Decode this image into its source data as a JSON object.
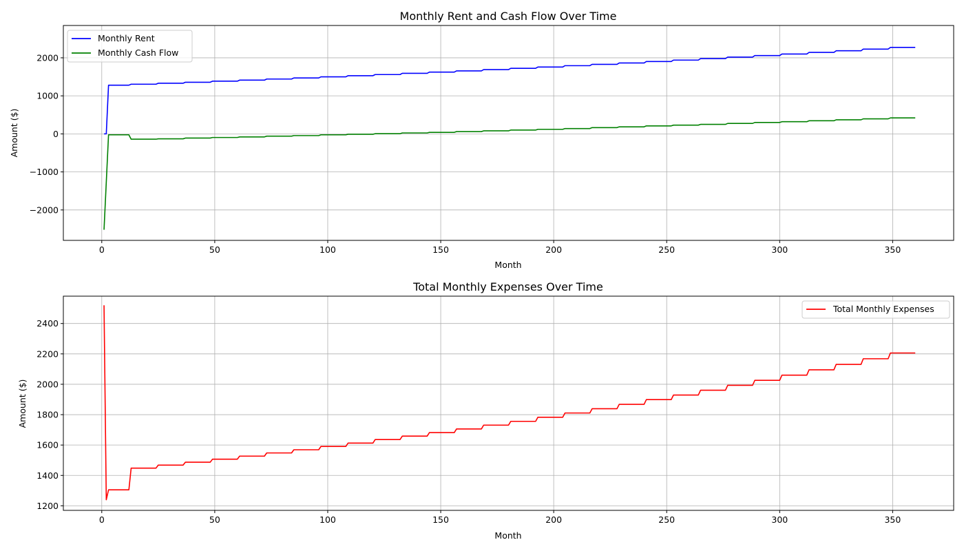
{
  "chart_data": [
    {
      "type": "line",
      "title": "Monthly Rent and Cash Flow Over Time",
      "xlabel": "Month",
      "ylabel": "Amount ($)",
      "xlim": [
        -17,
        377
      ],
      "ylim": [
        -2800,
        2850
      ],
      "xticks": [
        0,
        50,
        100,
        150,
        200,
        250,
        300,
        350
      ],
      "yticks": [
        -2000,
        -1000,
        0,
        1000,
        2000
      ],
      "ytick_labels": [
        "−2000",
        "−1000",
        "0",
        "1000",
        "2000"
      ],
      "grid": true,
      "legend_position": "top-left",
      "series": [
        {
          "name": "Monthly Rent",
          "color": "#0000ff",
          "x": [
            1,
            2,
            3,
            12,
            13,
            24,
            25,
            36,
            37,
            48,
            49,
            60,
            61,
            72,
            73,
            84,
            85,
            96,
            97,
            108,
            109,
            120,
            121,
            132,
            133,
            144,
            145,
            156,
            157,
            168,
            169,
            180,
            181,
            192,
            193,
            204,
            205,
            216,
            217,
            228,
            229,
            240,
            241,
            252,
            253,
            264,
            265,
            276,
            277,
            288,
            289,
            300,
            301,
            312,
            313,
            324,
            325,
            336,
            337,
            348,
            349,
            360
          ],
          "y": [
            0,
            0,
            1280,
            1280,
            1306,
            1306,
            1332,
            1332,
            1358,
            1358,
            1386,
            1386,
            1413,
            1413,
            1442,
            1442,
            1470,
            1470,
            1500,
            1500,
            1530,
            1530,
            1560,
            1560,
            1592,
            1592,
            1624,
            1624,
            1656,
            1656,
            1689,
            1689,
            1723,
            1723,
            1757,
            1757,
            1793,
            1793,
            1828,
            1828,
            1865,
            1865,
            1902,
            1902,
            1940,
            1940,
            1979,
            1979,
            2019,
            2019,
            2059,
            2059,
            2100,
            2100,
            2142,
            2142,
            2185,
            2185,
            2229,
            2229,
            2273,
            2273
          ]
        },
        {
          "name": "Monthly Cash Flow",
          "color": "#008000",
          "x": [
            1,
            3,
            12,
            13,
            24,
            25,
            36,
            37,
            48,
            49,
            60,
            61,
            72,
            73,
            84,
            85,
            96,
            97,
            108,
            109,
            120,
            121,
            132,
            133,
            144,
            145,
            156,
            157,
            168,
            169,
            180,
            181,
            192,
            193,
            204,
            205,
            216,
            217,
            228,
            229,
            240,
            241,
            252,
            253,
            264,
            265,
            276,
            277,
            288,
            289,
            300,
            301,
            312,
            313,
            324,
            325,
            336,
            337,
            348,
            349,
            360
          ],
          "y": [
            -2520,
            -25,
            -25,
            -140,
            -140,
            -130,
            -130,
            -110,
            -110,
            -95,
            -95,
            -80,
            -80,
            -60,
            -60,
            -45,
            -45,
            -25,
            -25,
            -10,
            -10,
            5,
            5,
            25,
            25,
            40,
            40,
            60,
            60,
            80,
            80,
            100,
            100,
            120,
            120,
            140,
            140,
            165,
            165,
            185,
            185,
            210,
            210,
            230,
            230,
            250,
            250,
            275,
            275,
            300,
            300,
            320,
            320,
            345,
            345,
            370,
            370,
            395,
            395,
            420,
            420
          ]
        }
      ]
    },
    {
      "type": "line",
      "title": "Total Monthly Expenses Over Time",
      "xlabel": "Month",
      "ylabel": "Amount ($)",
      "xlim": [
        -17,
        377
      ],
      "ylim": [
        1170,
        2580
      ],
      "xticks": [
        0,
        50,
        100,
        150,
        200,
        250,
        300,
        350
      ],
      "yticks": [
        1200,
        1400,
        1600,
        1800,
        2000,
        2200,
        2400
      ],
      "ytick_labels": [
        "1200",
        "1400",
        "1600",
        "1800",
        "2000",
        "2200",
        "2400"
      ],
      "grid": true,
      "legend_position": "top-right",
      "series": [
        {
          "name": "Total Monthly Expenses",
          "color": "#ff0000",
          "x": [
            1,
            2,
            3,
            12,
            13,
            24,
            25,
            36,
            37,
            48,
            49,
            60,
            61,
            72,
            73,
            84,
            85,
            96,
            97,
            108,
            109,
            120,
            121,
            132,
            133,
            144,
            145,
            156,
            157,
            168,
            169,
            180,
            181,
            192,
            193,
            204,
            205,
            216,
            217,
            228,
            229,
            240,
            241,
            252,
            253,
            264,
            265,
            276,
            277,
            288,
            289,
            300,
            301,
            312,
            313,
            324,
            325,
            336,
            337,
            348,
            349,
            360
          ],
          "y": [
            2520,
            1240,
            1305,
            1305,
            1448,
            1448,
            1468,
            1468,
            1487,
            1487,
            1507,
            1507,
            1527,
            1527,
            1548,
            1548,
            1569,
            1569,
            1591,
            1591,
            1613,
            1613,
            1636,
            1636,
            1659,
            1659,
            1682,
            1682,
            1706,
            1706,
            1731,
            1731,
            1756,
            1756,
            1783,
            1783,
            1811,
            1811,
            1839,
            1839,
            1868,
            1868,
            1899,
            1899,
            1929,
            1929,
            1961,
            1961,
            1993,
            1993,
            2026,
            2026,
            2060,
            2060,
            2095,
            2095,
            2131,
            2131,
            2168,
            2168,
            2206,
            2206
          ]
        }
      ]
    }
  ]
}
